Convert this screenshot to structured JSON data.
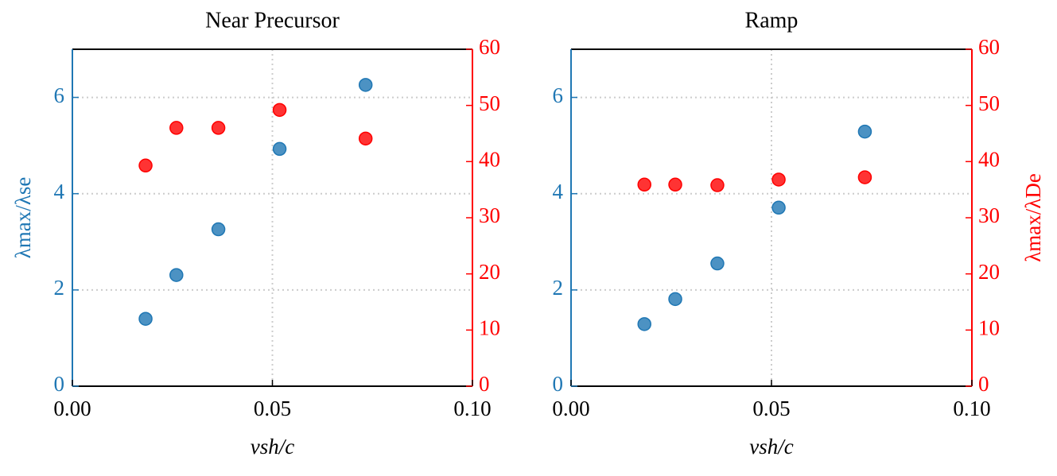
{
  "chart_data": [
    {
      "type": "scatter",
      "title": "Near Precursor",
      "xlabel": "vsh/c",
      "ylabel": "λmax/λse",
      "x": [
        0.0183,
        0.026,
        0.0365,
        0.0518,
        0.0733
      ],
      "xlim": [
        0,
        0.1
      ],
      "xticks": [
        {
          "value": 0,
          "label": "0.00"
        },
        {
          "value": 0.05,
          "label": "0.05"
        },
        {
          "value": 0.1,
          "label": "0.10"
        }
      ],
      "ylim": [
        0,
        7
      ],
      "yticks": [
        0,
        2,
        4,
        6
      ],
      "y2lim": [
        0,
        60
      ],
      "y2ticks": [
        0,
        10,
        20,
        30,
        40,
        50,
        60
      ],
      "y_color": "#1f77b4",
      "y2_color": "#ff0000",
      "grid": true,
      "series": [
        {
          "color": "#1f77b4",
          "axis": "y",
          "values": [
            1.4,
            2.31,
            3.26,
            4.93,
            6.26
          ]
        },
        {
          "color": "#ff0000",
          "axis": "y2",
          "values": [
            39.3,
            46.0,
            46.0,
            49.2,
            44.1
          ]
        }
      ]
    },
    {
      "type": "scatter",
      "title": "Ramp",
      "xlabel": "vsh/c",
      "y2label": "λmax/λDe",
      "x": [
        0.0183,
        0.026,
        0.0365,
        0.0518,
        0.0733
      ],
      "xlim": [
        0,
        0.1
      ],
      "xticks": [
        {
          "value": 0,
          "label": "0.00"
        },
        {
          "value": 0.05,
          "label": "0.05"
        },
        {
          "value": 0.1,
          "label": "0.10"
        }
      ],
      "ylim": [
        0,
        7
      ],
      "yticks": [
        0,
        2,
        4,
        6
      ],
      "y2lim": [
        0,
        60
      ],
      "y2ticks": [
        0,
        10,
        20,
        30,
        40,
        50,
        60
      ],
      "y_color": "#1f77b4",
      "y2_color": "#ff0000",
      "grid": true,
      "series": [
        {
          "color": "#1f77b4",
          "axis": "y",
          "values": [
            1.29,
            1.81,
            2.55,
            3.71,
            5.29
          ]
        },
        {
          "color": "#ff0000",
          "axis": "y2",
          "values": [
            35.9,
            35.9,
            35.8,
            36.8,
            37.2
          ]
        }
      ]
    }
  ]
}
